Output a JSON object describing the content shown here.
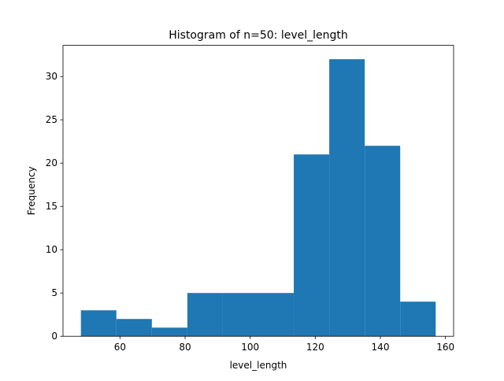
{
  "chart_data": {
    "type": "bar",
    "title": "Histogram of n=50: level_length",
    "xlabel": "level_length",
    "ylabel": "Frequency",
    "xlim": [
      42.5,
      162.5
    ],
    "ylim": [
      0,
      33.6
    ],
    "xticks": [
      60,
      80,
      100,
      120,
      140,
      160
    ],
    "yticks": [
      0,
      5,
      10,
      15,
      20,
      25,
      30
    ],
    "bin_edges": [
      48,
      58.9,
      69.8,
      80.7,
      91.6,
      102.5,
      113.4,
      124.3,
      135.2,
      146.1,
      157
    ],
    "values": [
      3,
      2,
      1,
      5,
      5,
      5,
      21,
      32,
      22,
      4
    ],
    "grid": false,
    "bar_color": "#1f77b4"
  }
}
